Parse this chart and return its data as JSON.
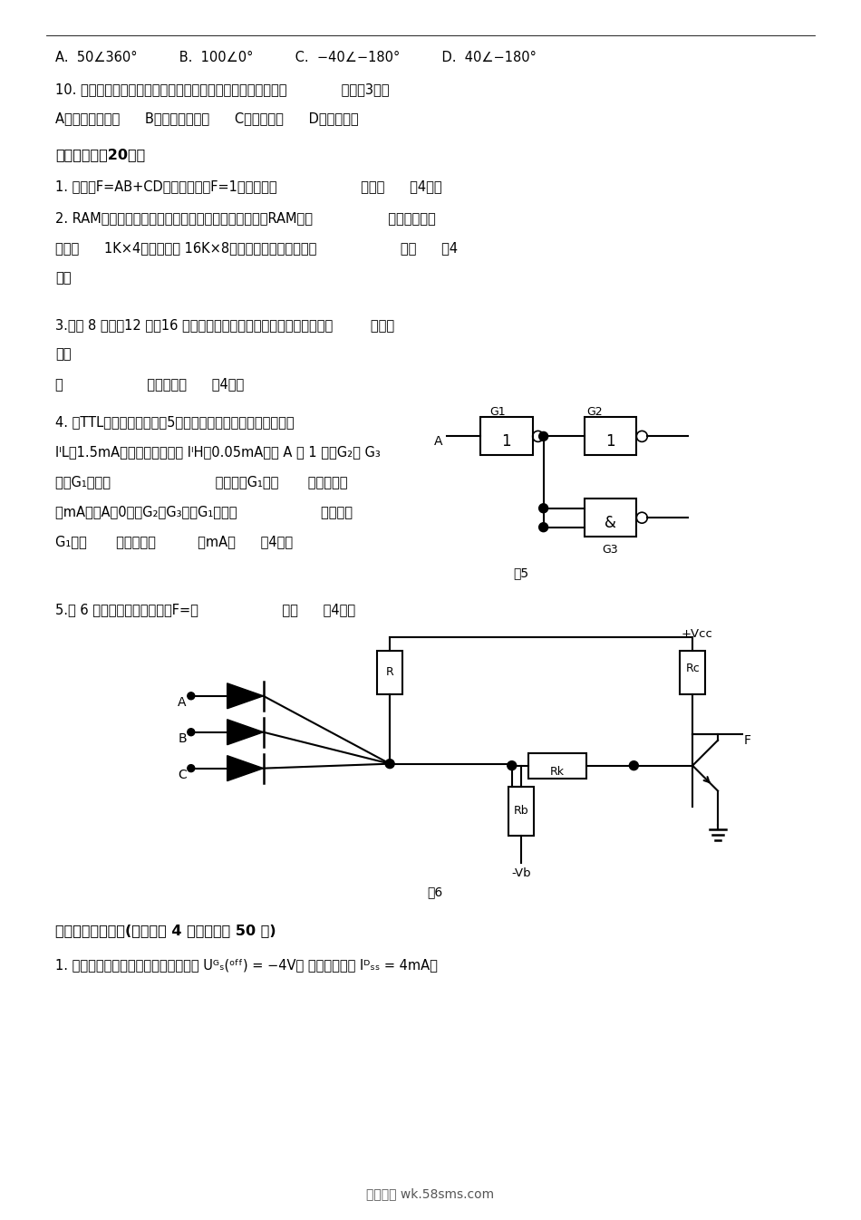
{
  "bg_color": "#ffffff",
  "text_color": "#000000",
  "page_width": 9.5,
  "page_height": 13.46,
  "line1": "A.  50∠360°          B.  100∠0°          C.  −40∠−180°          D.  40∠−180°",
  "line2": "10. 集成运算放大器输入级采用差动放大电路的主要目地应为（             ）。（3分）",
  "line3": "A、稳定放大倍数      B、提高输入电阵      C、克服零漂      D、扩宽频带",
  "section2_title": "二、填空题（20分）",
  "q1": "1. 在函数F=AB+CD的真值表中，F=1的状态有（                    ）个。      （4分）",
  "q2a": "2. RAM字扩展的方法是利用新增加的地址线去控制各片RAM的（                  ）端，如果用",
  "q2b": "容量为      1K×4的芯片组成 16K×8存储器，所需的片数为（                    ）。      （4",
  "q2c": "分）",
  "q3a": "3.具有 8 个、、12 个、16 个触发器个数的二进制异步计数器，各有（         ）、（",
  "q3b": "）、",
  "q3c": "（                    ）个状态。      （4分）",
  "q4_title": "4. 由TTL门组成的电路如图5所示。已知它们的输入低电平电流",
  "q4a": "IᴵL为1.5mA，输入高电平电流 IᴵH为0.05mA。当 A 为 1 时，G₂， G₃",
  "q4b": "门对G₁构成（                         ）负载，G₁的（       ）电流为（",
  "q4c": "）mA；当A为0时，G₂，G₃门对G₁构成（                    ）负载，",
  "q4d": "G₁的（       ）电流为（          ）mA。      （4分）",
  "q5_label": "5.图 6 所示电路的逻辑表达为F=（                    ）。      （4分）",
  "fig5_label": "图5",
  "fig6_label": "图6",
  "section3_title": "三、模拟电路部分(本部分共 4 大题，总计 50 分)",
  "s3q1": "1. 电路如图所示，场效应管的夹断电压 Uᴳₛ(ᵒᶠᶠ) = −4V， 饱和漏极电流 Iᴰₛₛ = 4mA，",
  "footer": "五八文库 wk.58sms.com"
}
